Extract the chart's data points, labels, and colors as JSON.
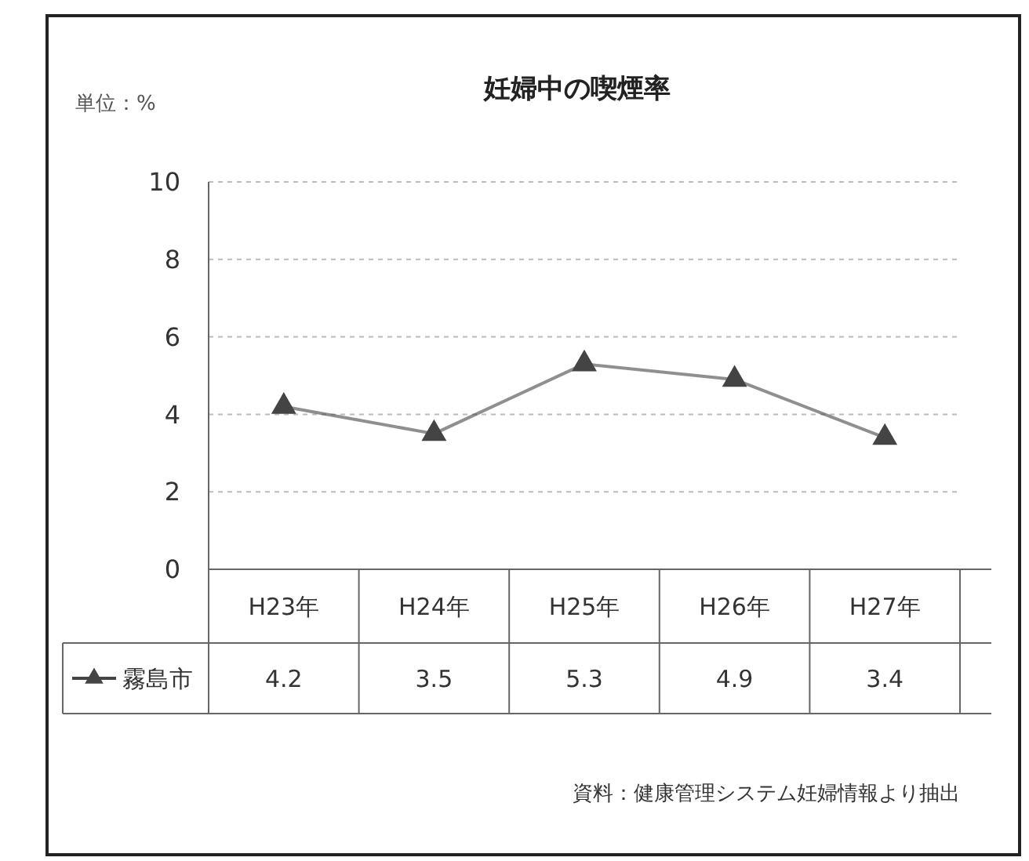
{
  "chart_data": {
    "type": "line",
    "title": "妊婦中の喫煙率",
    "ylabel": "単位：%",
    "categories": [
      "H23年",
      "H24年",
      "H25年",
      "H26年",
      "H27年"
    ],
    "series": [
      {
        "name": "霧島市",
        "color": "#444444",
        "values": [
          4.2,
          3.5,
          5.3,
          4.9,
          3.4
        ]
      }
    ],
    "ylim": [
      0,
      10
    ],
    "yticks": [
      0,
      2,
      4,
      6,
      8,
      10
    ],
    "grid": "y",
    "legend": "bottom left",
    "marker": "triangle",
    "line_style": "solid",
    "data_labels": true,
    "annotations": [
      "資料：健康管理システム妊婦情報より抽出"
    ]
  }
}
